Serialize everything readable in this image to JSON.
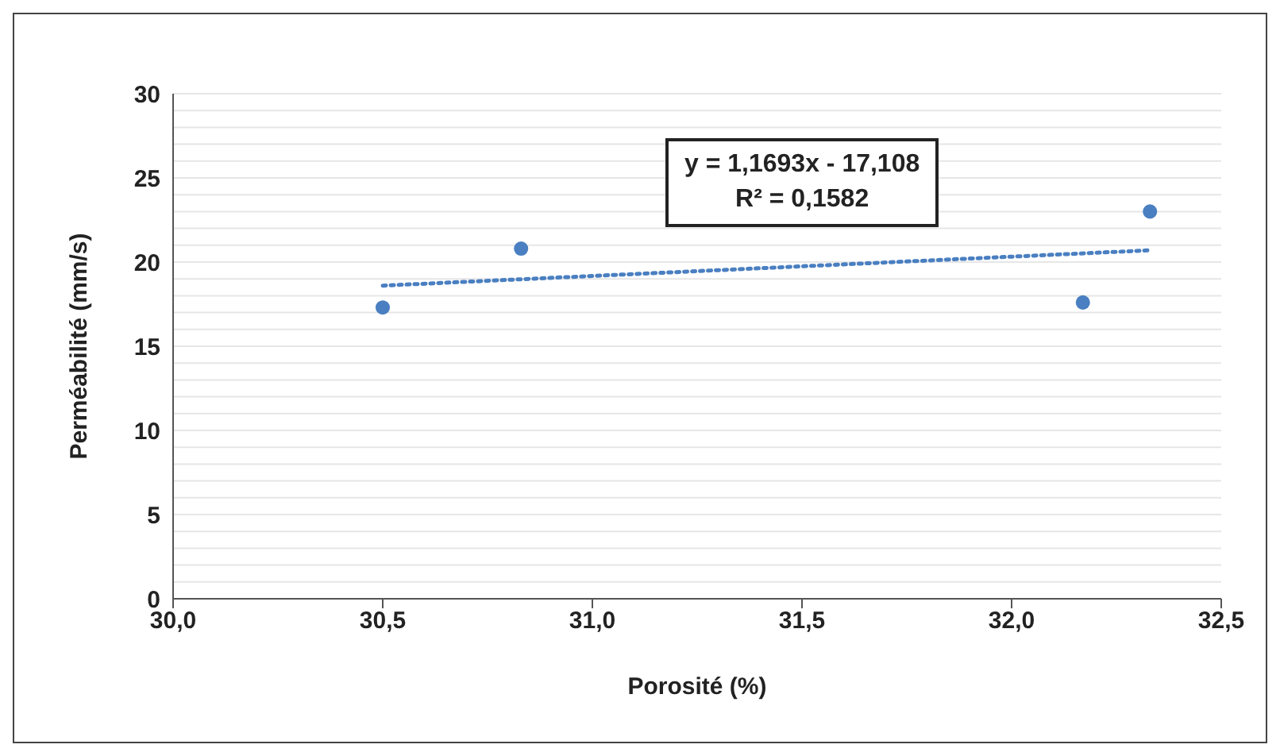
{
  "chart_data": {
    "type": "scatter",
    "xlabel": "Porosité (%)",
    "ylabel": "Perméabilité (mm/s)",
    "xlim": [
      30,
      32.5
    ],
    "xticks": [
      {
        "value": 30,
        "label": "30,0"
      },
      {
        "value": 30.5,
        "label": "30,5"
      },
      {
        "value": 31,
        "label": "31,0"
      },
      {
        "value": 31.5,
        "label": "31,5"
      },
      {
        "value": 32,
        "label": "32,0"
      },
      {
        "value": 32.5,
        "label": "32,5"
      }
    ],
    "ylim": [
      0,
      30
    ],
    "yticks": [
      0,
      {
        "value": 1,
        "label": null
      },
      {
        "value": 2,
        "label": null
      },
      {
        "value": 3,
        "label": null
      },
      {
        "value": 4,
        "label": null
      },
      5,
      {
        "value": 6,
        "label": null
      },
      {
        "value": 7,
        "label": null
      },
      {
        "value": 8,
        "label": null
      },
      {
        "value": 9,
        "label": null
      },
      10,
      {
        "value": 11,
        "label": null
      },
      {
        "value": 12,
        "label": null
      },
      {
        "value": 13,
        "label": null
      },
      {
        "value": 14,
        "label": null
      },
      15,
      {
        "value": 16,
        "label": null
      },
      {
        "value": 17,
        "label": null
      },
      {
        "value": 18,
        "label": null
      },
      {
        "value": 19,
        "label": null
      },
      20,
      {
        "value": 21,
        "label": null
      },
      {
        "value": 22,
        "label": null
      },
      {
        "value": 23,
        "label": null
      },
      {
        "value": 24,
        "label": null
      },
      25,
      {
        "value": 26,
        "label": null
      },
      {
        "value": 27,
        "label": null
      },
      {
        "value": 28,
        "label": null
      },
      {
        "value": 29,
        "label": null
      },
      30
    ],
    "grid": "y",
    "marker": "circle",
    "legend": false,
    "series": [
      {
        "color": "#4a7fc1",
        "x": [
          30.5,
          30.83,
          32.17,
          32.33
        ],
        "values": [
          17.3,
          20.8,
          17.6,
          23.0
        ]
      },
      {
        "type": "line",
        "color": "#4a7fc1",
        "line_style": "dotted",
        "marker": "none",
        "x": [
          30.5,
          32.33
        ],
        "values": [
          18.6,
          20.7
        ]
      }
    ],
    "annotations": [
      "y = 1,1693x - 17,108",
      "R² = 0,1582"
    ]
  }
}
